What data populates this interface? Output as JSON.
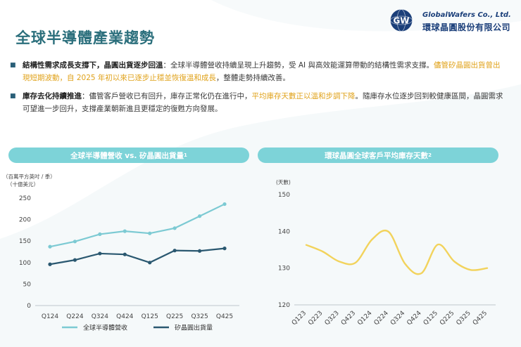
{
  "page": {
    "title": "全球半導體產業趨勢"
  },
  "logo": {
    "mark": "GW",
    "name_en": "GlobalWafers Co., Ltd.",
    "name_zh": "環球晶圓股份有限公司"
  },
  "bullets": [
    {
      "bold": "結構性需求成長支撐下，晶圓出貨逐步回溫",
      "text1": "：全球半導體營收持續呈現上升趨勢，受 AI 與高效能運算帶動的結構性需求支撐。",
      "highlight": "儘管矽晶圓出貨曾出現短期波動，自 2025 年初以來已逐步止穩並恢復溫和成長",
      "text2": "，整體走勢持續改善。"
    },
    {
      "bold": "庫存去化持續推進",
      "text1": "：儘管客戶營收已有回升，庫存正常化仍在進行中，",
      "highlight": "平均庫存天數正以溫和步調下降",
      "text2": "。隨庫存水位逐步回到較健康區間，晶圓需求可望進一步回升，支撐產業朝新進且更穩定的復甦方向發展。"
    }
  ],
  "colors": {
    "accent": "#2b6f7c",
    "pill": "#7dd3d8",
    "series_revenue": "#7ccad3",
    "series_shipments": "#2a5870",
    "inventory_line": "#f2d35c",
    "highlight": "#e0a21a"
  },
  "chart_data": [
    {
      "type": "line",
      "header": "全球半導體營收 vs. 矽晶圓出貨量",
      "header_sup": "1",
      "unit_lines": [
        "（百萬平方英吋 / 季）",
        "（十億美元）"
      ],
      "categories": [
        "Q124",
        "Q224",
        "Q324",
        "Q424",
        "Q125",
        "Q225",
        "Q325",
        "Q425"
      ],
      "yticks": [
        0,
        50,
        100,
        150,
        200,
        250
      ],
      "ylim": [
        0,
        250
      ],
      "grid": false,
      "legend_position": "bottom",
      "series": [
        {
          "name": "全球半導體營收",
          "color": "#7ccad3",
          "values": [
            137,
            149,
            166,
            173,
            168,
            180,
            208,
            236
          ]
        },
        {
          "name": "矽晶圓出貨量",
          "color": "#2a5870",
          "values": [
            96,
            106,
            121,
            119,
            100,
            128,
            127,
            133
          ]
        }
      ]
    },
    {
      "type": "line",
      "header": "環球晶圓全球客戶平均庫存天數",
      "header_sup": "2",
      "unit_lines": [
        "(天數)"
      ],
      "categories": [
        "Q123",
        "Q223",
        "Q323",
        "Q423",
        "Q124",
        "Q224",
        "Q324",
        "Q424",
        "Q125",
        "Q225",
        "Q325",
        "Q425"
      ],
      "yticks": [
        120,
        130,
        140,
        150
      ],
      "ylim": [
        120,
        150
      ],
      "grid": false,
      "smooth": true,
      "series": [
        {
          "color": "#f2d35c",
          "values": [
            136.3,
            134.5,
            131.8,
            131.5,
            137.8,
            139.9,
            131.2,
            128.6,
            136.4,
            131.8,
            129.5,
            130.0
          ]
        }
      ]
    }
  ]
}
